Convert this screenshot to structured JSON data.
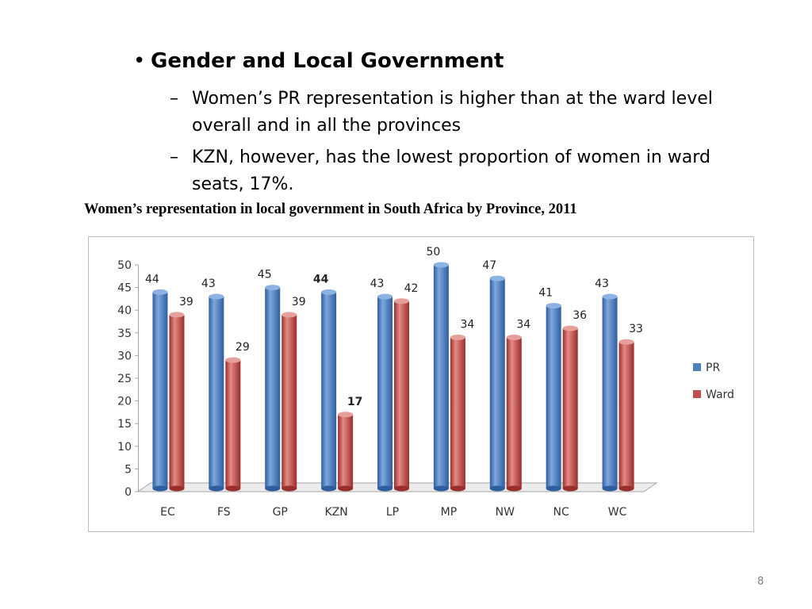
{
  "slide": {
    "bullet_marker": "•",
    "heading": "Gender and Local Government",
    "sub_marker": "–",
    "sub_points": [
      "Women’s PR representation is higher than at the ward level overall and in all the provinces",
      "KZN, however, has the lowest proportion of women in ward seats, 17%."
    ],
    "chart_title": "Women’s representation in local government in South Africa by Province, 2011",
    "page_number": "8"
  },
  "chart_data": {
    "type": "bar",
    "title": "Women’s representation in local government in South Africa by Province, 2011",
    "categories": [
      "EC",
      "FS",
      "GP",
      "KZN",
      "LP",
      "MP",
      "NW",
      "NC",
      "WC"
    ],
    "series": [
      {
        "name": "PR",
        "values": [
          44,
          43,
          45,
          44,
          43,
          50,
          47,
          41,
          43
        ],
        "color": "#4F81BD"
      },
      {
        "name": "Ward",
        "values": [
          39,
          29,
          39,
          17,
          42,
          34,
          34,
          36,
          33
        ],
        "color": "#C0504D"
      }
    ],
    "ylim": [
      0,
      50
    ],
    "yticks": [
      0,
      5,
      10,
      15,
      20,
      25,
      30,
      35,
      40,
      45,
      50
    ],
    "grid": false,
    "legend": "right",
    "data_labels": true,
    "style": "3d-cylinder"
  }
}
